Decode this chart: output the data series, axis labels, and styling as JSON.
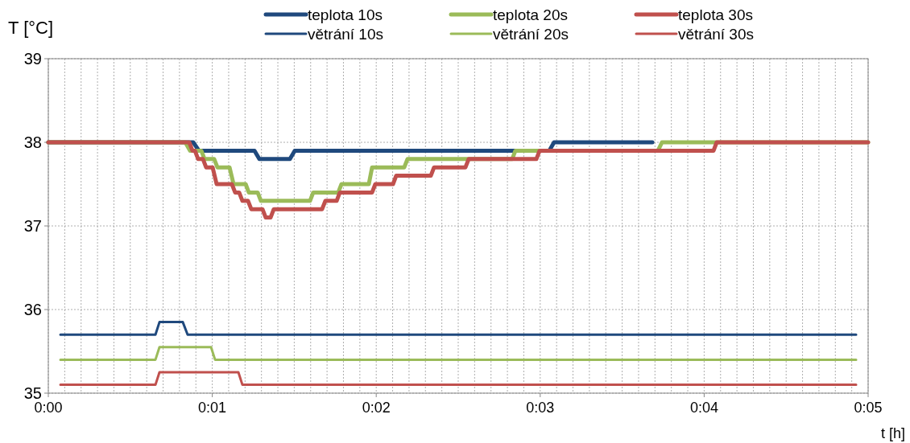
{
  "chart_data": {
    "type": "line",
    "xlabel": "t [h]",
    "ylabel": "T [°C]",
    "legend": "top",
    "grid": true,
    "marker": "none",
    "line_style": "solid",
    "xlim": [
      0,
      0.083333
    ],
    "ylim": [
      35,
      39
    ],
    "yticks": [
      35,
      36,
      37,
      38,
      39
    ],
    "xticks": [
      {
        "value": 0,
        "label": "0:00"
      },
      {
        "value": 0.001667,
        "label": null
      },
      {
        "value": 0.003333,
        "label": null
      },
      {
        "value": 0.005,
        "label": null
      },
      {
        "value": 0.006667,
        "label": null
      },
      {
        "value": 0.008333,
        "label": null
      },
      {
        "value": 0.01,
        "label": null
      },
      {
        "value": 0.011667,
        "label": null
      },
      {
        "value": 0.013333,
        "label": null
      },
      {
        "value": 0.015,
        "label": null
      },
      {
        "value": 0.016667,
        "label": "0:01"
      },
      {
        "value": 0.018333,
        "label": null
      },
      {
        "value": 0.02,
        "label": null
      },
      {
        "value": 0.021667,
        "label": null
      },
      {
        "value": 0.023333,
        "label": null
      },
      {
        "value": 0.025,
        "label": null
      },
      {
        "value": 0.026667,
        "label": null
      },
      {
        "value": 0.028333,
        "label": null
      },
      {
        "value": 0.03,
        "label": null
      },
      {
        "value": 0.031667,
        "label": null
      },
      {
        "value": 0.033333,
        "label": "0:02"
      },
      {
        "value": 0.035,
        "label": null
      },
      {
        "value": 0.036667,
        "label": null
      },
      {
        "value": 0.038333,
        "label": null
      },
      {
        "value": 0.04,
        "label": null
      },
      {
        "value": 0.041667,
        "label": null
      },
      {
        "value": 0.043333,
        "label": null
      },
      {
        "value": 0.045,
        "label": null
      },
      {
        "value": 0.046667,
        "label": null
      },
      {
        "value": 0.048333,
        "label": null
      },
      {
        "value": 0.05,
        "label": "0:03"
      },
      {
        "value": 0.051667,
        "label": null
      },
      {
        "value": 0.053333,
        "label": null
      },
      {
        "value": 0.055,
        "label": null
      },
      {
        "value": 0.056667,
        "label": null
      },
      {
        "value": 0.058333,
        "label": null
      },
      {
        "value": 0.06,
        "label": null
      },
      {
        "value": 0.061667,
        "label": null
      },
      {
        "value": 0.063333,
        "label": null
      },
      {
        "value": 0.065,
        "label": null
      },
      {
        "value": 0.066667,
        "label": "0:04"
      },
      {
        "value": 0.068333,
        "label": null
      },
      {
        "value": 0.07,
        "label": null
      },
      {
        "value": 0.071667,
        "label": null
      },
      {
        "value": 0.073333,
        "label": null
      },
      {
        "value": 0.075,
        "label": null
      },
      {
        "value": 0.076667,
        "label": null
      },
      {
        "value": 0.078333,
        "label": null
      },
      {
        "value": 0.08,
        "label": null
      },
      {
        "value": 0.081667,
        "label": null
      },
      {
        "value": 0.083333,
        "label": "0:05"
      }
    ],
    "series": [
      {
        "name": "teplota 10s",
        "color": "#1f497d",
        "x": [
          0,
          0.01473,
          0.01531,
          0.02096,
          0.02145,
          0.02456,
          0.02505,
          0.05092,
          0.05141,
          0.0614
        ],
        "values": [
          38,
          38,
          37.9,
          37.9,
          37.8,
          37.8,
          37.9,
          37.9,
          38,
          38
        ]
      },
      {
        "name": "teplota 20s",
        "color": "#9bbb59",
        "x": [
          0,
          0.01392,
          0.01441,
          0.01555,
          0.01588,
          0.01686,
          0.01719,
          0.01842,
          0.01883,
          0.02006,
          0.02038,
          0.02128,
          0.02161,
          0.0266,
          0.02693,
          0.02947,
          0.0298,
          0.03258,
          0.03291,
          0.03618,
          0.03651,
          0.04715,
          0.04748,
          0.06197,
          0.06238,
          0.08333
        ],
        "values": [
          38,
          38,
          37.9,
          37.9,
          37.8,
          37.8,
          37.7,
          37.7,
          37.5,
          37.5,
          37.4,
          37.4,
          37.3,
          37.3,
          37.4,
          37.4,
          37.5,
          37.5,
          37.7,
          37.7,
          37.8,
          37.8,
          37.9,
          37.9,
          38,
          38
        ]
      },
      {
        "name": "teplota 30s",
        "color": "#c0504d",
        "x": [
          0,
          0.01433,
          0.01465,
          0.0149,
          0.01523,
          0.01572,
          0.01604,
          0.0167,
          0.01711,
          0.01866,
          0.01899,
          0.0194,
          0.01973,
          0.0203,
          0.02063,
          0.02177,
          0.0221,
          0.02259,
          0.02292,
          0.02783,
          0.02816,
          0.02931,
          0.02963,
          0.03291,
          0.03324,
          0.03504,
          0.03536,
          0.03888,
          0.03921,
          0.0424,
          0.04273,
          0.04961,
          0.04994,
          0.06762,
          0.06794,
          0.08333
        ],
        "values": [
          38,
          38,
          37.9,
          37.9,
          37.8,
          37.8,
          37.7,
          37.7,
          37.5,
          37.5,
          37.4,
          37.4,
          37.3,
          37.3,
          37.2,
          37.2,
          37.1,
          37.1,
          37.2,
          37.2,
          37.3,
          37.3,
          37.4,
          37.4,
          37.5,
          37.5,
          37.6,
          37.6,
          37.7,
          37.7,
          37.8,
          37.8,
          37.9,
          37.9,
          38,
          38
        ]
      },
      {
        "name": "větrání 10s",
        "color": "#1f497d",
        "x": [
          0.00123,
          0.01089,
          0.0113,
          0.01367,
          0.01416,
          0.08211
        ],
        "values": [
          35.7,
          35.7,
          35.85,
          35.85,
          35.7,
          35.7
        ]
      },
      {
        "name": "větrání 20s",
        "color": "#9bbb59",
        "x": [
          0.00123,
          0.01089,
          0.0113,
          0.01654,
          0.01695,
          0.08211
        ],
        "values": [
          35.4,
          35.4,
          35.55,
          35.55,
          35.4,
          35.4
        ]
      },
      {
        "name": "větrání 30s",
        "color": "#c0504d",
        "x": [
          0.00123,
          0.01089,
          0.0113,
          0.01932,
          0.01973,
          0.08211
        ],
        "values": [
          35.1,
          35.1,
          35.25,
          35.25,
          35.1,
          35.1
        ]
      }
    ]
  }
}
